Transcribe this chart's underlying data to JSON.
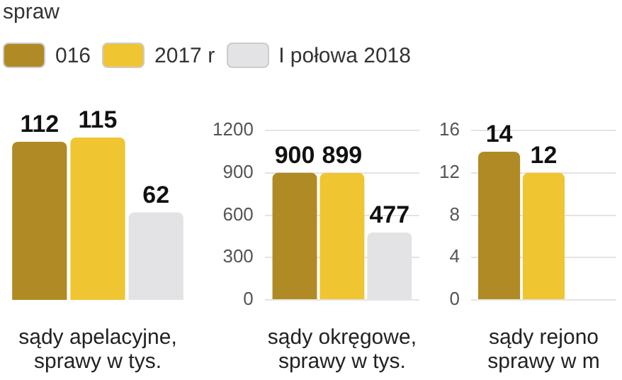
{
  "chart_data": [
    {
      "type": "bar",
      "title": "spraw",
      "categories": [
        null
      ],
      "xlabel": "sądy apelacyjne,\nsprawy w tys.",
      "tick_labels": false,
      "legend": "top",
      "data_labels": true,
      "series": [
        {
          "name": "016",
          "color": "#b08a24",
          "values": [
            112
          ]
        },
        {
          "name": "2017 r",
          "color": "#f0c532",
          "values": [
            115
          ]
        },
        {
          "name": "I połowa 2018",
          "color": "#e3e3e5",
          "values": [
            62
          ]
        }
      ]
    },
    {
      "type": "bar",
      "categories": [
        null
      ],
      "xlabel": "sądy okręgowe,\nsprawy w tys.",
      "ylim": [
        0,
        1200
      ],
      "yticks": [
        0,
        300,
        600,
        900,
        1200
      ],
      "grid": "y",
      "tick_labels": "y",
      "data_labels": true,
      "series": [
        {
          "color": "#b08a24",
          "values": [
            900
          ]
        },
        {
          "color": "#f0c532",
          "values": [
            899
          ]
        },
        {
          "color": "#e3e3e5",
          "values": [
            477
          ]
        }
      ]
    },
    {
      "type": "bar",
      "categories": [
        null
      ],
      "xlabel": "sądy rejono\nsprawy w m",
      "ylim": [
        0,
        16
      ],
      "yticks": [
        0,
        4,
        8,
        12,
        16
      ],
      "grid": "y",
      "tick_labels": "y",
      "data_labels": true,
      "series": [
        {
          "color": "#b08a24",
          "values": [
            14
          ]
        },
        {
          "color": "#f0c532",
          "values": [
            12
          ]
        },
        {
          "color": "#e3e3e5",
          "values": [
            null
          ]
        }
      ]
    }
  ]
}
